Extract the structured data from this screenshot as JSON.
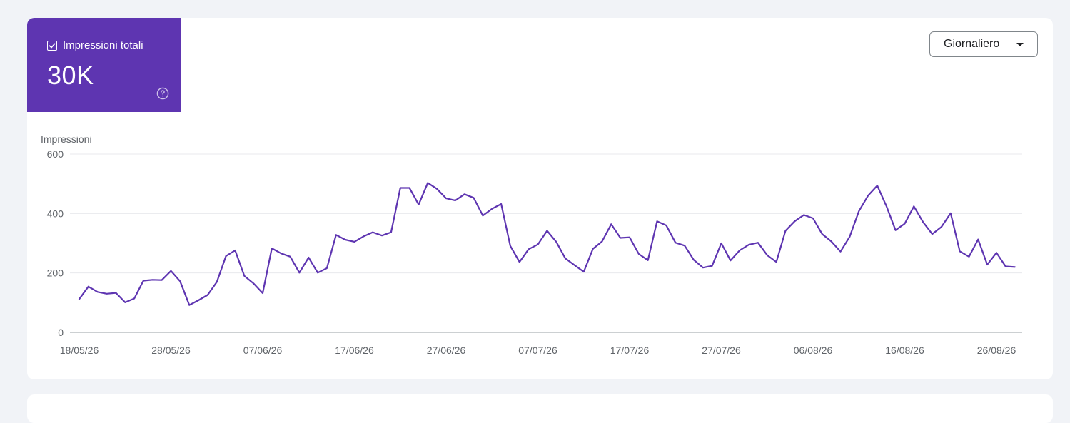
{
  "metric": {
    "label": "Impressioni totali",
    "value": "30K",
    "checked": true
  },
  "period_select": {
    "value": "Giornaliero"
  },
  "colors": {
    "accent": "#5e35b1",
    "grid": "#e8eaed",
    "axis": "#9aa0a6"
  },
  "icons": {
    "checkbox": "check-icon",
    "help": "help-circle-icon",
    "dropdown": "caret-down-icon"
  },
  "chart_data": {
    "type": "line",
    "ylabel": "Impressioni",
    "xlabel": "",
    "ylim": [
      0,
      600
    ],
    "yticks": [
      0,
      200,
      400,
      600
    ],
    "xticks": [
      "18/05/26",
      "28/05/26",
      "07/06/26",
      "17/06/26",
      "27/06/26",
      "07/07/26",
      "17/07/26",
      "27/07/26",
      "06/08/26",
      "16/08/26",
      "26/08/26"
    ],
    "start_label": "18/05/26",
    "grid": true,
    "series": [
      {
        "values": [
          112,
          154,
          136,
          130,
          133,
          101,
          114,
          174,
          177,
          176,
          207,
          172,
          92,
          108,
          126,
          170,
          257,
          276,
          190,
          165,
          132,
          283,
          266,
          255,
          201,
          252,
          201,
          216,
          328,
          312,
          305,
          323,
          337,
          326,
          337,
          486,
          486,
          430,
          503,
          483,
          451,
          444,
          465,
          453,
          393,
          416,
          432,
          291,
          237,
          280,
          296,
          342,
          305,
          249,
          226,
          204,
          281,
          306,
          364,
          318,
          320,
          264,
          243,
          374,
          360,
          302,
          292,
          244,
          218,
          224,
          300,
          242,
          276,
          295,
          302,
          260,
          237,
          342,
          374,
          395,
          384,
          331,
          306,
          272,
          322,
          408,
          460,
          494,
          425,
          344,
          366,
          424,
          371,
          331,
          355,
          401,
          273,
          255,
          313,
          228,
          268,
          222,
          220
        ]
      }
    ]
  }
}
